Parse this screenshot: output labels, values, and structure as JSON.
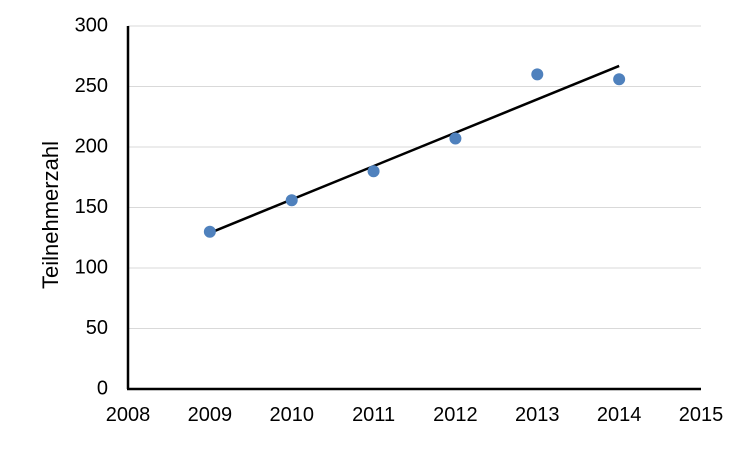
{
  "chart_data": {
    "type": "scatter",
    "title": "",
    "xlabel": "",
    "ylabel": "Teilnehmerzahl",
    "xlim": [
      2008,
      2015
    ],
    "ylim": [
      0,
      300
    ],
    "x_ticks": [
      2008,
      2009,
      2010,
      2011,
      2012,
      2013,
      2014,
      2015
    ],
    "y_ticks": [
      0,
      50,
      100,
      150,
      200,
      250,
      300
    ],
    "grid": true,
    "legend": "none",
    "series": [
      {
        "x": [
          2009,
          2010,
          2011,
          2012,
          2013,
          2014
        ],
        "y": [
          130,
          156,
          180,
          207,
          260,
          256
        ],
        "color": "#4f81bd"
      }
    ],
    "trendline": {
      "type": "linear",
      "x": [
        2009,
        2014
      ],
      "y": [
        129,
        267
      ],
      "color": "#000000"
    }
  }
}
